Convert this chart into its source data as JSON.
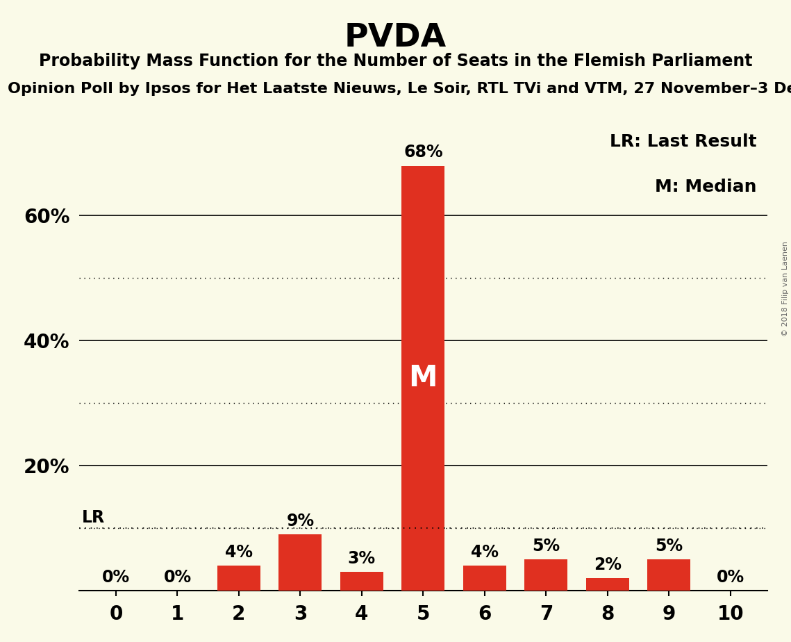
{
  "title": "PVDA",
  "subtitle": "Probability Mass Function for the Number of Seats in the Flemish Parliament",
  "source_line": "Opinion Poll by Ipsos for Het Laatste Nieuws, Le Soir, RTL TVi and VTM, 27 November–3 De",
  "copyright": "© 2018 Filip van Laenen",
  "categories": [
    0,
    1,
    2,
    3,
    4,
    5,
    6,
    7,
    8,
    9,
    10
  ],
  "values": [
    0,
    0,
    4,
    9,
    3,
    68,
    4,
    5,
    2,
    5,
    0
  ],
  "bar_color": "#e03020",
  "background_color": "#fafae8",
  "text_color": "#000000",
  "dotted_gridlines": [
    10,
    30,
    50
  ],
  "solid_gridlines": [
    20,
    40,
    60
  ],
  "lr_value": 10,
  "median_seat": 5,
  "legend_lr": "LR: Last Result",
  "legend_m": "M: Median",
  "title_fontsize": 34,
  "subtitle_fontsize": 17,
  "source_fontsize": 16,
  "bar_label_fontsize": 17,
  "axis_label_fontsize": 20,
  "median_fontsize": 30,
  "ylim": [
    0,
    75
  ]
}
